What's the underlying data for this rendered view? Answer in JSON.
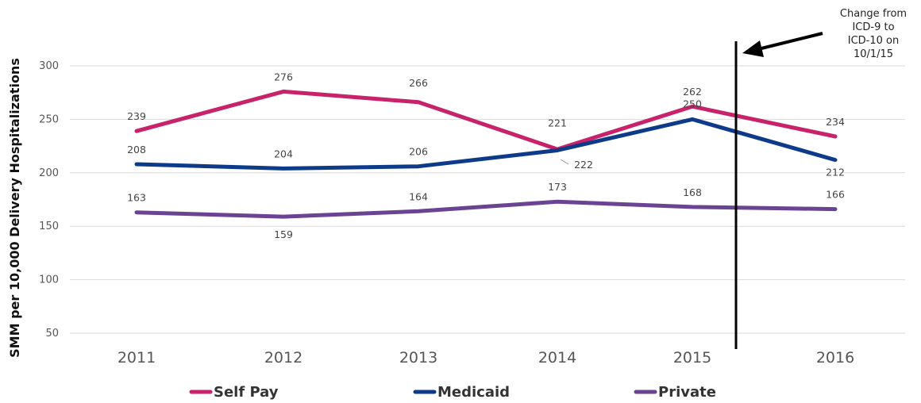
{
  "chart_data": {
    "type": "line",
    "ylabel": "SMM per 10,000 Delivery Hospitalizations",
    "xlabel": "",
    "ylim": [
      50,
      300
    ],
    "yticks": [
      50,
      100,
      150,
      200,
      250,
      300
    ],
    "categories": [
      "2011",
      "2012",
      "2013",
      "2014",
      "2015",
      "2016"
    ],
    "grid": "horizontal",
    "legend_position": "bottom",
    "series": [
      {
        "name": "Self Pay",
        "color": "#c8236a",
        "values": [
          239,
          276,
          266,
          222,
          262,
          234
        ]
      },
      {
        "name": "Medicaid",
        "color": "#0d3b8a",
        "values": [
          208,
          204,
          206,
          221,
          250,
          212
        ]
      },
      {
        "name": "Private",
        "color": "#6a4493",
        "values": [
          163,
          159,
          164,
          173,
          168,
          166
        ]
      }
    ],
    "annotation": {
      "lines": [
        "Change from",
        "ICD-9 to",
        "ICD-10 on",
        "10/1/15"
      ],
      "at": "2015-10-01"
    }
  }
}
